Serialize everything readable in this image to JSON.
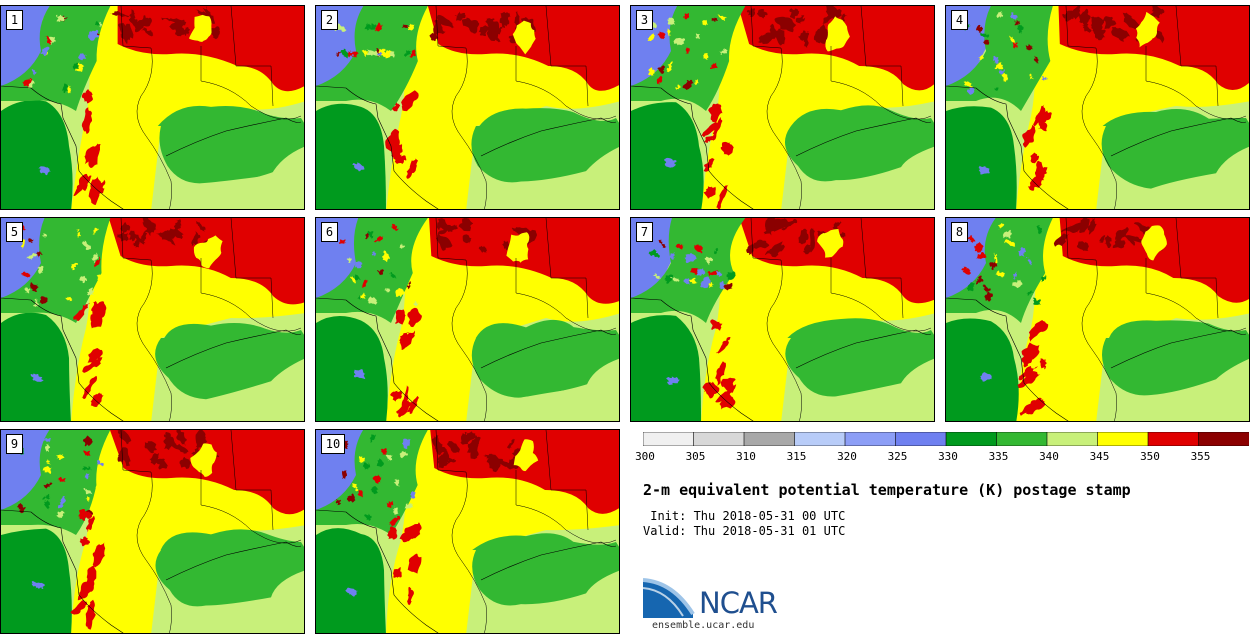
{
  "panels": [
    {
      "label": "1"
    },
    {
      "label": "2"
    },
    {
      "label": "3"
    },
    {
      "label": "4"
    },
    {
      "label": "5"
    },
    {
      "label": "6"
    },
    {
      "label": "7"
    },
    {
      "label": "8"
    },
    {
      "label": "9"
    },
    {
      "label": "10"
    }
  ],
  "legend": {
    "ticks": [
      "300",
      "305",
      "310",
      "315",
      "320",
      "325",
      "330",
      "335",
      "340",
      "345",
      "350",
      "355"
    ],
    "colors": [
      "#f0f0f0",
      "#d8d8d8",
      "#a8a8a8",
      "#b8ccf8",
      "#8c9ef6",
      "#6f80f0",
      "#009a1e",
      "#33b832",
      "#c8f07a",
      "#ffff00",
      "#e00000",
      "#8b0000"
    ]
  },
  "title": "2-m equivalent potential temperature (K) postage stamp",
  "init": " Init: Thu 2018-05-31 00 UTC",
  "valid": "Valid: Thu 2018-05-31 01 UTC",
  "logo": {
    "text": "NCAR",
    "color": "#1f4f8f"
  },
  "site": "ensemble.ucar.edu"
}
